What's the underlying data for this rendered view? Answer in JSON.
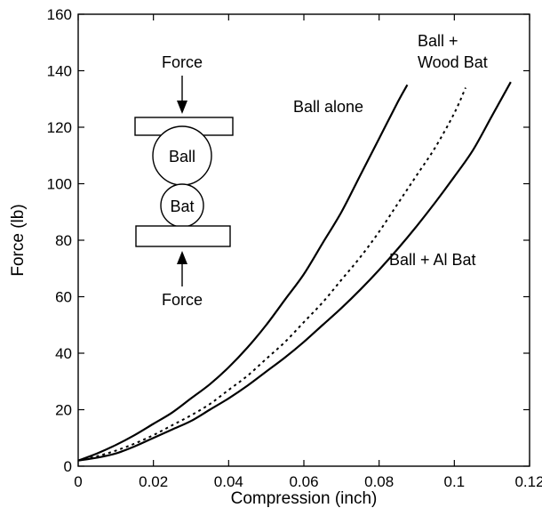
{
  "chart_data": {
    "type": "line",
    "title": "",
    "xlabel": "Compression (inch)",
    "ylabel": "Force (lb)",
    "xlim": [
      0,
      0.12
    ],
    "ylim": [
      0,
      160
    ],
    "x_ticks": [
      "0",
      "0.02",
      "0.04",
      "0.06",
      "0.08",
      "0.1",
      "0.12"
    ],
    "y_ticks": [
      "0",
      "20",
      "40",
      "60",
      "80",
      "100",
      "120",
      "140",
      "160"
    ],
    "grid": false,
    "series": [
      {
        "name": "Ball alone",
        "style": "solid",
        "x": [
          0,
          0.005,
          0.01,
          0.015,
          0.02,
          0.025,
          0.03,
          0.035,
          0.04,
          0.045,
          0.05,
          0.055,
          0.06,
          0.065,
          0.07,
          0.075,
          0.08,
          0.085,
          0.0875
        ],
        "y": [
          2,
          4.5,
          7.5,
          11,
          15,
          19,
          24,
          29,
          35,
          42,
          50,
          59,
          68,
          79,
          90,
          103,
          116,
          129,
          135
        ]
      },
      {
        "name": "Ball + Wood Bat",
        "style": "dotted",
        "x": [
          0,
          0.005,
          0.01,
          0.015,
          0.02,
          0.025,
          0.03,
          0.035,
          0.04,
          0.045,
          0.05,
          0.055,
          0.06,
          0.065,
          0.07,
          0.075,
          0.08,
          0.085,
          0.09,
          0.095,
          0.1,
          0.103
        ],
        "y": [
          2,
          3.5,
          5.5,
          8,
          11,
          14.5,
          18,
          22,
          27,
          32,
          38,
          44,
          51,
          58,
          66,
          74,
          83,
          93,
          103,
          113,
          125,
          134
        ]
      },
      {
        "name": "Ball + Al Bat",
        "style": "solid",
        "x": [
          0,
          0.005,
          0.01,
          0.015,
          0.02,
          0.025,
          0.03,
          0.035,
          0.04,
          0.045,
          0.05,
          0.055,
          0.06,
          0.065,
          0.07,
          0.075,
          0.08,
          0.085,
          0.09,
          0.095,
          0.1,
          0.105,
          0.11,
          0.115
        ],
        "y": [
          2,
          3,
          4.5,
          7,
          10,
          13,
          16,
          20,
          24,
          28.5,
          33.5,
          38.5,
          44,
          50,
          56,
          62.5,
          69.5,
          77,
          85,
          93.5,
          102.5,
          112,
          124,
          136
        ]
      }
    ],
    "annotations": [
      {
        "text": "Ball alone"
      },
      {
        "text": "Ball +"
      },
      {
        "text": "Wood Bat"
      },
      {
        "text": "Ball + Al Bat"
      }
    ],
    "inset_diagram": {
      "top_force": "Force",
      "bottom_force": "Force",
      "ball": "Ball",
      "bat": "Bat"
    }
  }
}
